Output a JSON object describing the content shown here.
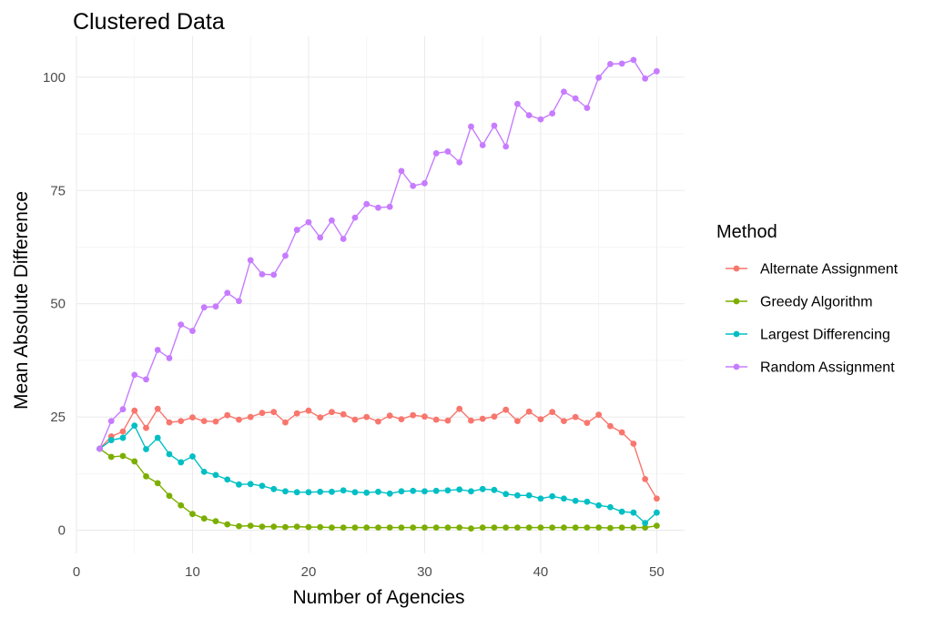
{
  "chart_data": {
    "type": "line",
    "title": "Clustered Data",
    "xlabel": "Number of Agencies",
    "ylabel": "Mean Absolute Difference",
    "xlim": [
      0,
      52.4
    ],
    "ylim": [
      -5.1,
      109
    ],
    "x_ticks": [
      0,
      10,
      20,
      30,
      40,
      50
    ],
    "y_ticks": [
      0,
      25,
      50,
      75,
      100
    ],
    "grid": true,
    "legend": {
      "title": "Method",
      "position": "right"
    },
    "x": [
      2,
      3,
      4,
      5,
      6,
      7,
      8,
      9,
      10,
      11,
      12,
      13,
      14,
      15,
      16,
      17,
      18,
      19,
      20,
      21,
      22,
      23,
      24,
      25,
      26,
      27,
      28,
      29,
      30,
      31,
      32,
      33,
      34,
      35,
      36,
      37,
      38,
      39,
      40,
      41,
      42,
      43,
      44,
      45,
      46,
      47,
      48,
      49,
      50
    ],
    "series": [
      {
        "name": "Alternate Assignment",
        "color": "#F8766D",
        "values": [
          18.0,
          20.7,
          21.8,
          26.4,
          22.6,
          26.8,
          23.8,
          24.1,
          24.9,
          24.1,
          24.0,
          25.4,
          24.4,
          25.0,
          25.9,
          26.1,
          23.8,
          25.8,
          26.4,
          24.9,
          26.1,
          25.6,
          24.4,
          25.0,
          24.0,
          25.3,
          24.5,
          25.4,
          25.1,
          24.4,
          24.2,
          26.8,
          24.2,
          24.6,
          25.1,
          26.6,
          24.1,
          26.2,
          24.5,
          26.1,
          24.1,
          25.0,
          23.7,
          25.5,
          23.0,
          21.6,
          19.1,
          11.3,
          7.0
        ]
      },
      {
        "name": "Greedy Algorithm",
        "color": "#7CAE00",
        "values": [
          18.0,
          16.2,
          16.4,
          15.2,
          11.9,
          10.4,
          7.6,
          5.5,
          3.6,
          2.6,
          2.0,
          1.3,
          0.9,
          1.0,
          0.8,
          0.8,
          0.7,
          0.8,
          0.7,
          0.7,
          0.6,
          0.6,
          0.6,
          0.6,
          0.6,
          0.6,
          0.6,
          0.6,
          0.6,
          0.6,
          0.6,
          0.6,
          0.4,
          0.6,
          0.6,
          0.6,
          0.6,
          0.6,
          0.6,
          0.6,
          0.6,
          0.6,
          0.6,
          0.6,
          0.5,
          0.6,
          0.6,
          0.6,
          1.0
        ]
      },
      {
        "name": "Largest Differencing",
        "color": "#00BFC4",
        "values": [
          18.0,
          19.9,
          20.4,
          23.1,
          17.9,
          20.4,
          16.8,
          15.0,
          16.3,
          12.9,
          12.2,
          11.2,
          10.1,
          10.2,
          9.8,
          9.1,
          8.6,
          8.4,
          8.4,
          8.5,
          8.5,
          8.8,
          8.4,
          8.3,
          8.5,
          8.1,
          8.6,
          8.7,
          8.6,
          8.7,
          8.8,
          9.0,
          8.6,
          9.1,
          8.9,
          8.0,
          7.7,
          7.7,
          7.0,
          7.5,
          7.0,
          6.5,
          6.3,
          5.5,
          5.1,
          4.1,
          3.9,
          1.6,
          3.9
        ]
      },
      {
        "name": "Random Assignment",
        "color": "#C77CFF",
        "values": [
          18.0,
          24.1,
          26.7,
          34.3,
          33.3,
          39.8,
          38.0,
          45.4,
          44.0,
          49.2,
          49.4,
          52.4,
          50.6,
          59.6,
          56.5,
          56.4,
          60.6,
          66.3,
          68.0,
          64.6,
          68.4,
          64.3,
          69.0,
          72.0,
          71.2,
          71.4,
          79.3,
          76.0,
          76.6,
          83.2,
          83.6,
          81.2,
          89.1,
          85.0,
          89.3,
          84.7,
          94.1,
          91.6,
          90.7,
          92.0,
          96.8,
          95.3,
          93.2,
          99.9,
          102.9,
          103.0,
          103.8,
          99.7,
          101.3
        ]
      }
    ]
  }
}
